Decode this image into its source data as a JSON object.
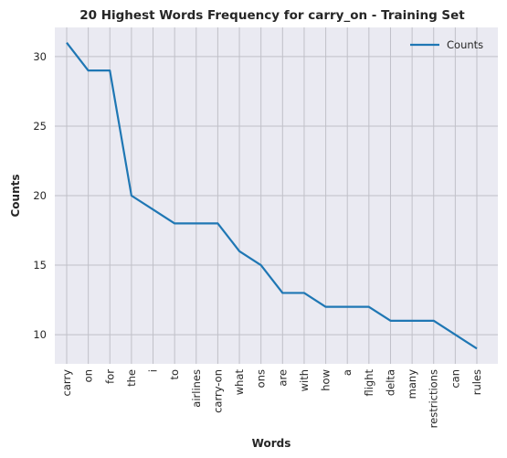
{
  "chart_data": {
    "type": "line",
    "title": "20 Highest Words Frequency for carry_on - Training Set",
    "xlabel": "Words",
    "ylabel": "Counts",
    "categories": [
      "carry",
      "on",
      "for",
      "the",
      "i",
      "to",
      "airlines",
      "carry-on",
      "what",
      "ons",
      "are",
      "with",
      "how",
      "a",
      "flight",
      "delta",
      "many",
      "restrictions",
      "can",
      "rules"
    ],
    "series": [
      {
        "name": "Counts",
        "values": [
          31,
          29,
          29,
          20,
          19,
          18,
          18,
          18,
          16,
          15,
          13,
          13,
          12,
          12,
          12,
          11,
          11,
          11,
          10,
          9
        ],
        "color": "#1f77b4"
      }
    ],
    "ylim": [
      7.9,
      32.1
    ],
    "yticks": [
      10,
      15,
      20,
      25,
      30
    ],
    "grid": true,
    "legend_position": "top-right",
    "background_color": "#eaeaf2"
  }
}
